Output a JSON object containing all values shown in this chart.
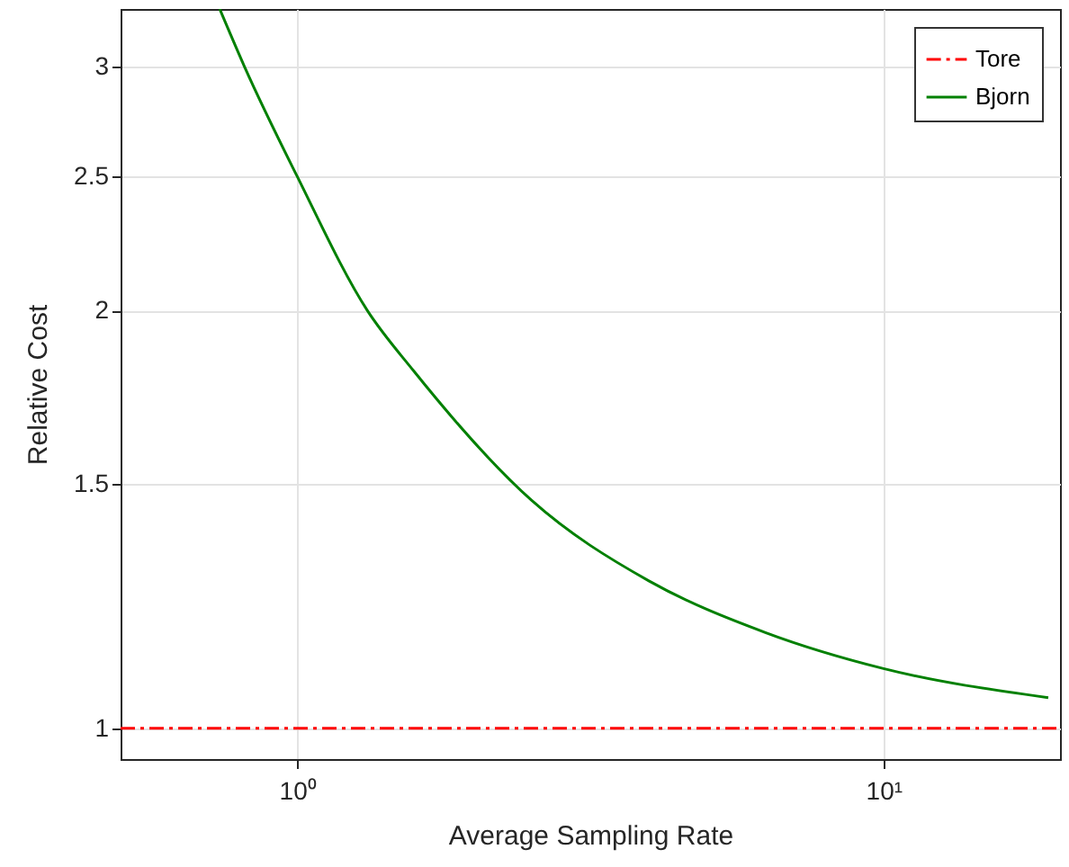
{
  "chart_data": {
    "type": "line",
    "xlabel": "Average Sampling Rate",
    "ylabel": "Relative Cost",
    "log": "xy",
    "grid": true,
    "legend": "top right",
    "marker": "none",
    "xlim": [
      0.5,
      20
    ],
    "ylim": [
      0.95,
      3.3
    ],
    "xticks": [
      {
        "value": 1,
        "label": "10⁰"
      },
      {
        "value": 10,
        "label": "10¹"
      }
    ],
    "yticks": [
      1,
      1.5,
      2,
      2.5,
      3
    ],
    "series": [
      {
        "name": "Tore",
        "color": "#ff0000",
        "line_style": "dashed",
        "x": [
          0.5,
          20
        ],
        "values": [
          1,
          1
        ]
      },
      {
        "name": "Bjorn",
        "color": "#008000",
        "line_style": "solid",
        "x": [
          0.738,
          0.813,
          1,
          1.318,
          1.58,
          2.51,
          3.98,
          6.29,
          10,
          19.1
        ],
        "values": [
          3.3,
          3,
          2.5,
          2,
          1.81,
          1.46,
          1.277,
          1.172,
          1.104,
          1.052
        ]
      }
    ]
  }
}
